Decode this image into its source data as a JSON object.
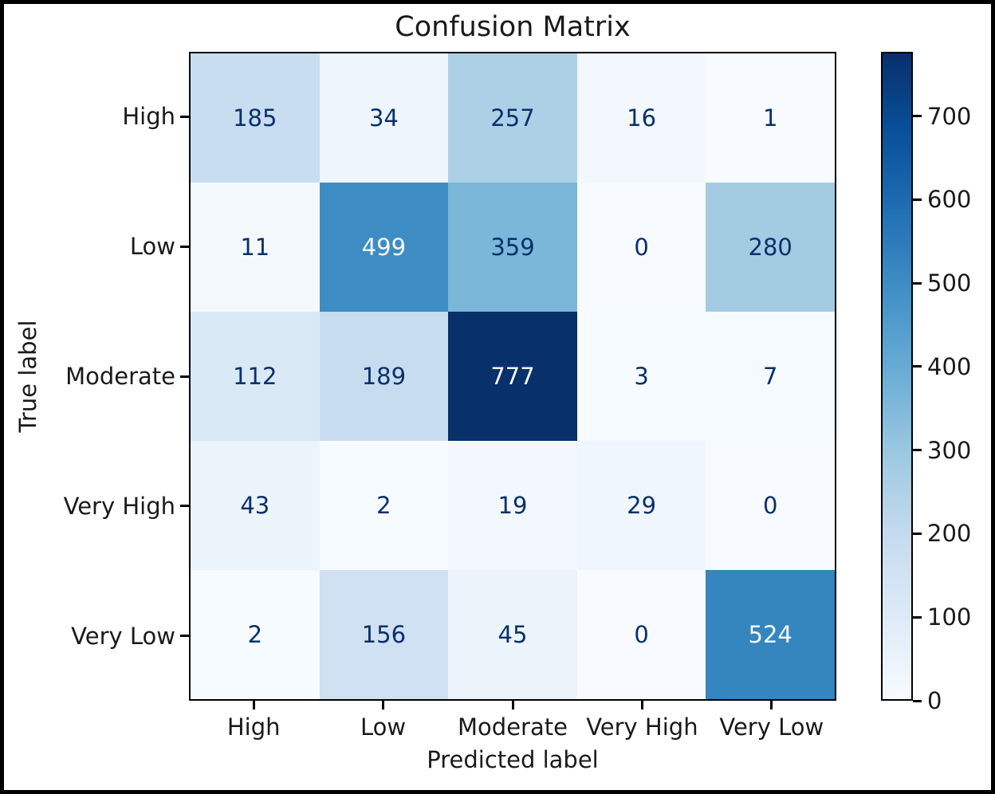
{
  "chart_data": {
    "type": "heatmap",
    "title": "Confusion Matrix",
    "xlabel": "Predicted label",
    "ylabel": "True label",
    "x_categories": [
      "High",
      "Low",
      "Moderate",
      "Very High",
      "Very Low"
    ],
    "y_categories": [
      "High",
      "Low",
      "Moderate",
      "Very High",
      "Very Low"
    ],
    "matrix": [
      [
        185,
        34,
        257,
        16,
        1
      ],
      [
        11,
        499,
        359,
        0,
        280
      ],
      [
        112,
        189,
        777,
        3,
        7
      ],
      [
        43,
        2,
        19,
        29,
        0
      ],
      [
        2,
        156,
        45,
        0,
        524
      ]
    ],
    "vmin": 0,
    "vmax": 777,
    "colormap": "Blues",
    "colorbar_ticks": [
      0,
      100,
      200,
      300,
      400,
      500,
      600,
      700
    ],
    "legend_position": "right-colorbar",
    "grid": false,
    "colors": {
      "cmap_stops": [
        "#f7fbff",
        "#deebf7",
        "#c6dbef",
        "#9ecae1",
        "#6baed6",
        "#4292c6",
        "#2171b5",
        "#08519c",
        "#08306b"
      ],
      "dark_text": "#08306b",
      "light_text": "#f7fbff",
      "axis_text": "#1a1a1a",
      "spine": "#000000"
    }
  }
}
